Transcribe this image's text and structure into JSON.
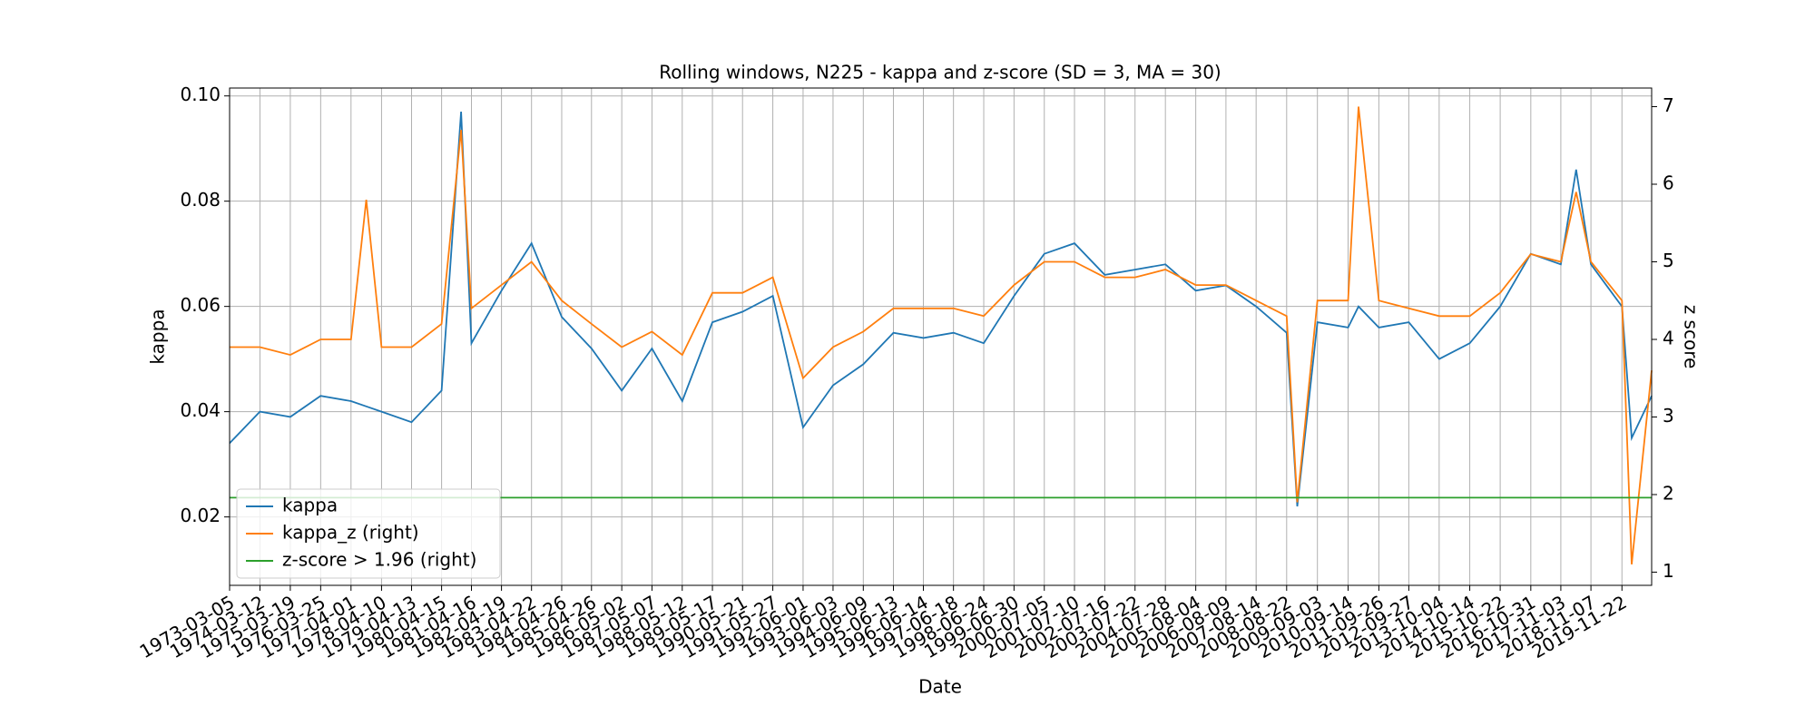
{
  "chart_data": {
    "type": "line",
    "title": "Rolling windows, N225 - kappa and z-score (SD = 3, MA = 30)",
    "x_label": "Date",
    "y_label": "kappa",
    "y2_label": "z score",
    "x": [
      "1973-03-05",
      "1974-03-12",
      "1975-03-19",
      "1976-03-25",
      "1977-04-01",
      "1977-10-05",
      "1978-04-10",
      "1979-04-13",
      "1980-04-15",
      "1980-12-10",
      "1981-04-16",
      "1982-04-19",
      "1983-04-22",
      "1984-04-26",
      "1985-04-26",
      "1986-05-02",
      "1987-05-07",
      "1988-05-12",
      "1989-05-17",
      "1990-05-21",
      "1991-05-27",
      "1992-06-01",
      "1993-06-03",
      "1994-06-09",
      "1995-06-13",
      "1996-06-14",
      "1997-06-18",
      "1998-06-24",
      "1999-06-30",
      "2000-07-05",
      "2001-07-10",
      "2002-07-16",
      "2003-07-22",
      "2004-07-28",
      "2005-08-04",
      "2006-08-09",
      "2007-08-14",
      "2008-08-22",
      "2008-12-30",
      "2009-09-03",
      "2010-09-14",
      "2011-01-20",
      "2011-09-26",
      "2012-09-27",
      "2013-10-04",
      "2014-10-14",
      "2015-10-22",
      "2016-10-31",
      "2017-11-03",
      "2018-05-10",
      "2018-11-07",
      "2019-11-22",
      "2020-03-20",
      "2020-11-20"
    ],
    "series": [
      {
        "name": "kappa",
        "color": "#1f77b4",
        "axis": "y",
        "values": [
          0.034,
          0.04,
          0.039,
          0.043,
          0.042,
          0.041,
          0.04,
          0.038,
          0.044,
          0.097,
          0.053,
          0.063,
          0.072,
          0.058,
          0.052,
          0.044,
          0.052,
          0.042,
          0.057,
          0.059,
          0.062,
          0.037,
          0.045,
          0.049,
          0.055,
          0.054,
          0.055,
          0.053,
          0.062,
          0.07,
          0.072,
          0.066,
          0.067,
          0.068,
          0.063,
          0.064,
          0.06,
          0.055,
          0.022,
          0.057,
          0.056,
          0.06,
          0.056,
          0.057,
          0.05,
          0.053,
          0.06,
          0.07,
          0.068,
          0.086,
          0.068,
          0.06,
          0.035,
          0.043
        ]
      },
      {
        "name": "kappa_z (right)",
        "color": "#ff7f0e",
        "axis": "y2",
        "values": [
          3.9,
          3.9,
          3.8,
          4.0,
          4.0,
          5.8,
          3.9,
          3.9,
          4.2,
          6.7,
          4.4,
          4.7,
          5.0,
          4.5,
          4.2,
          3.9,
          4.1,
          3.8,
          4.6,
          4.6,
          4.8,
          3.5,
          3.9,
          4.1,
          4.4,
          4.4,
          4.4,
          4.3,
          4.7,
          5.0,
          5.0,
          4.8,
          4.8,
          4.9,
          4.7,
          4.7,
          4.5,
          4.3,
          1.9,
          4.5,
          4.5,
          7.0,
          4.5,
          4.4,
          4.3,
          4.3,
          4.6,
          5.1,
          5.0,
          5.9,
          5.0,
          4.5,
          1.1,
          3.6
        ]
      },
      {
        "name": "z-score > 1.96 (right)",
        "color": "#2ca02c",
        "axis": "y2",
        "values": [
          1.96,
          1.96,
          1.96,
          1.96,
          1.96,
          1.96,
          1.96,
          1.96,
          1.96,
          1.96,
          1.96,
          1.96,
          1.96,
          1.96,
          1.96,
          1.96,
          1.96,
          1.96,
          1.96,
          1.96,
          1.96,
          1.96,
          1.96,
          1.96,
          1.96,
          1.96,
          1.96,
          1.96,
          1.96,
          1.96,
          1.96,
          1.96,
          1.96,
          1.96,
          1.96,
          1.96,
          1.96,
          1.96,
          1.96,
          1.96,
          1.96,
          1.96,
          1.96,
          1.96,
          1.96,
          1.96,
          1.96,
          1.96,
          1.96,
          1.96,
          1.96,
          1.96,
          1.96,
          1.96
        ]
      }
    ],
    "xlim": [
      "1973-03-05",
      "2020-11-20"
    ],
    "xticks": [
      "1973-03-05",
      "1974-03-12",
      "1975-03-19",
      "1976-03-25",
      "1977-04-01",
      "1978-04-10",
      "1979-04-13",
      "1980-04-15",
      "1981-04-16",
      "1982-04-19",
      "1983-04-22",
      "1984-04-26",
      "1985-04-26",
      "1986-05-02",
      "1987-05-07",
      "1988-05-12",
      "1989-05-17",
      "1990-05-21",
      "1991-05-27",
      "1992-06-01",
      "1993-06-03",
      "1994-06-09",
      "1995-06-13",
      "1996-06-14",
      "1997-06-18",
      "1998-06-24",
      "1999-06-30",
      "2000-07-05",
      "2001-07-10",
      "2002-07-16",
      "2003-07-22",
      "2004-07-28",
      "2005-08-04",
      "2006-08-09",
      "2007-08-14",
      "2008-08-22",
      "2009-09-03",
      "2010-09-14",
      "2011-09-26",
      "2012-09-27",
      "2013-10-04",
      "2014-10-14",
      "2015-10-22",
      "2016-10-31",
      "2017-11-03",
      "2018-11-07",
      "2019-11-22"
    ],
    "ylim": [
      0.007,
      0.1015
    ],
    "yticks": [
      0.02,
      0.04,
      0.06,
      0.08,
      {
        "value": 0.1,
        "label": "0.10"
      }
    ],
    "y2lim": [
      0.83,
      7.24
    ],
    "y2ticks": [
      1,
      2,
      3,
      4,
      5,
      6,
      7
    ],
    "grid": true,
    "legend": "lower left"
  }
}
